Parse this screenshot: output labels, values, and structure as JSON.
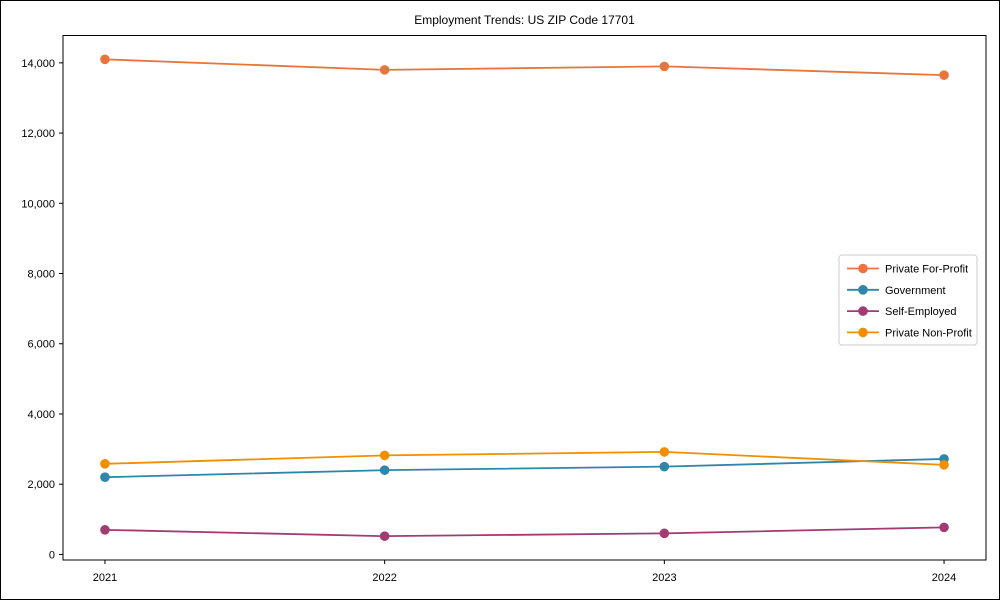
{
  "figure": {
    "title": "Employment Trends: US ZIP Code 17701"
  },
  "chart_data": {
    "type": "line",
    "title": "Employment Trends: US ZIP Code 17701",
    "x": [
      2021,
      2022,
      2023,
      2024
    ],
    "x_tick_labels": [
      "2021",
      "2022",
      "2023",
      "2024"
    ],
    "series": [
      {
        "name": "Private For-Profit",
        "color": "#E8763C",
        "values": [
          14100,
          13800,
          13900,
          13650
        ]
      },
      {
        "name": "Government",
        "color": "#2E86AB",
        "values": [
          2200,
          2400,
          2500,
          2720
        ]
      },
      {
        "name": "Self-Employed",
        "color": "#A23B72",
        "values": [
          700,
          520,
          600,
          770
        ]
      },
      {
        "name": "Private Non-Profit",
        "color": "#F18F01",
        "values": [
          2580,
          2820,
          2920,
          2550
        ]
      }
    ],
    "xlabel": "",
    "ylabel": "",
    "xlim": [
      2020.85,
      2024.15
    ],
    "ylim": [
      -159,
      14779
    ],
    "yticks": [
      0,
      2000,
      4000,
      6000,
      8000,
      10000,
      12000,
      14000
    ],
    "ytick_labels": [
      "0",
      "2,000",
      "4,000",
      "6,000",
      "8,000",
      "10,000",
      "12,000",
      "14,000"
    ],
    "grid": false,
    "marker": "circle",
    "legend": {
      "position": "center-right",
      "border_color": "#cccccc",
      "background": "#ffffff"
    }
  }
}
